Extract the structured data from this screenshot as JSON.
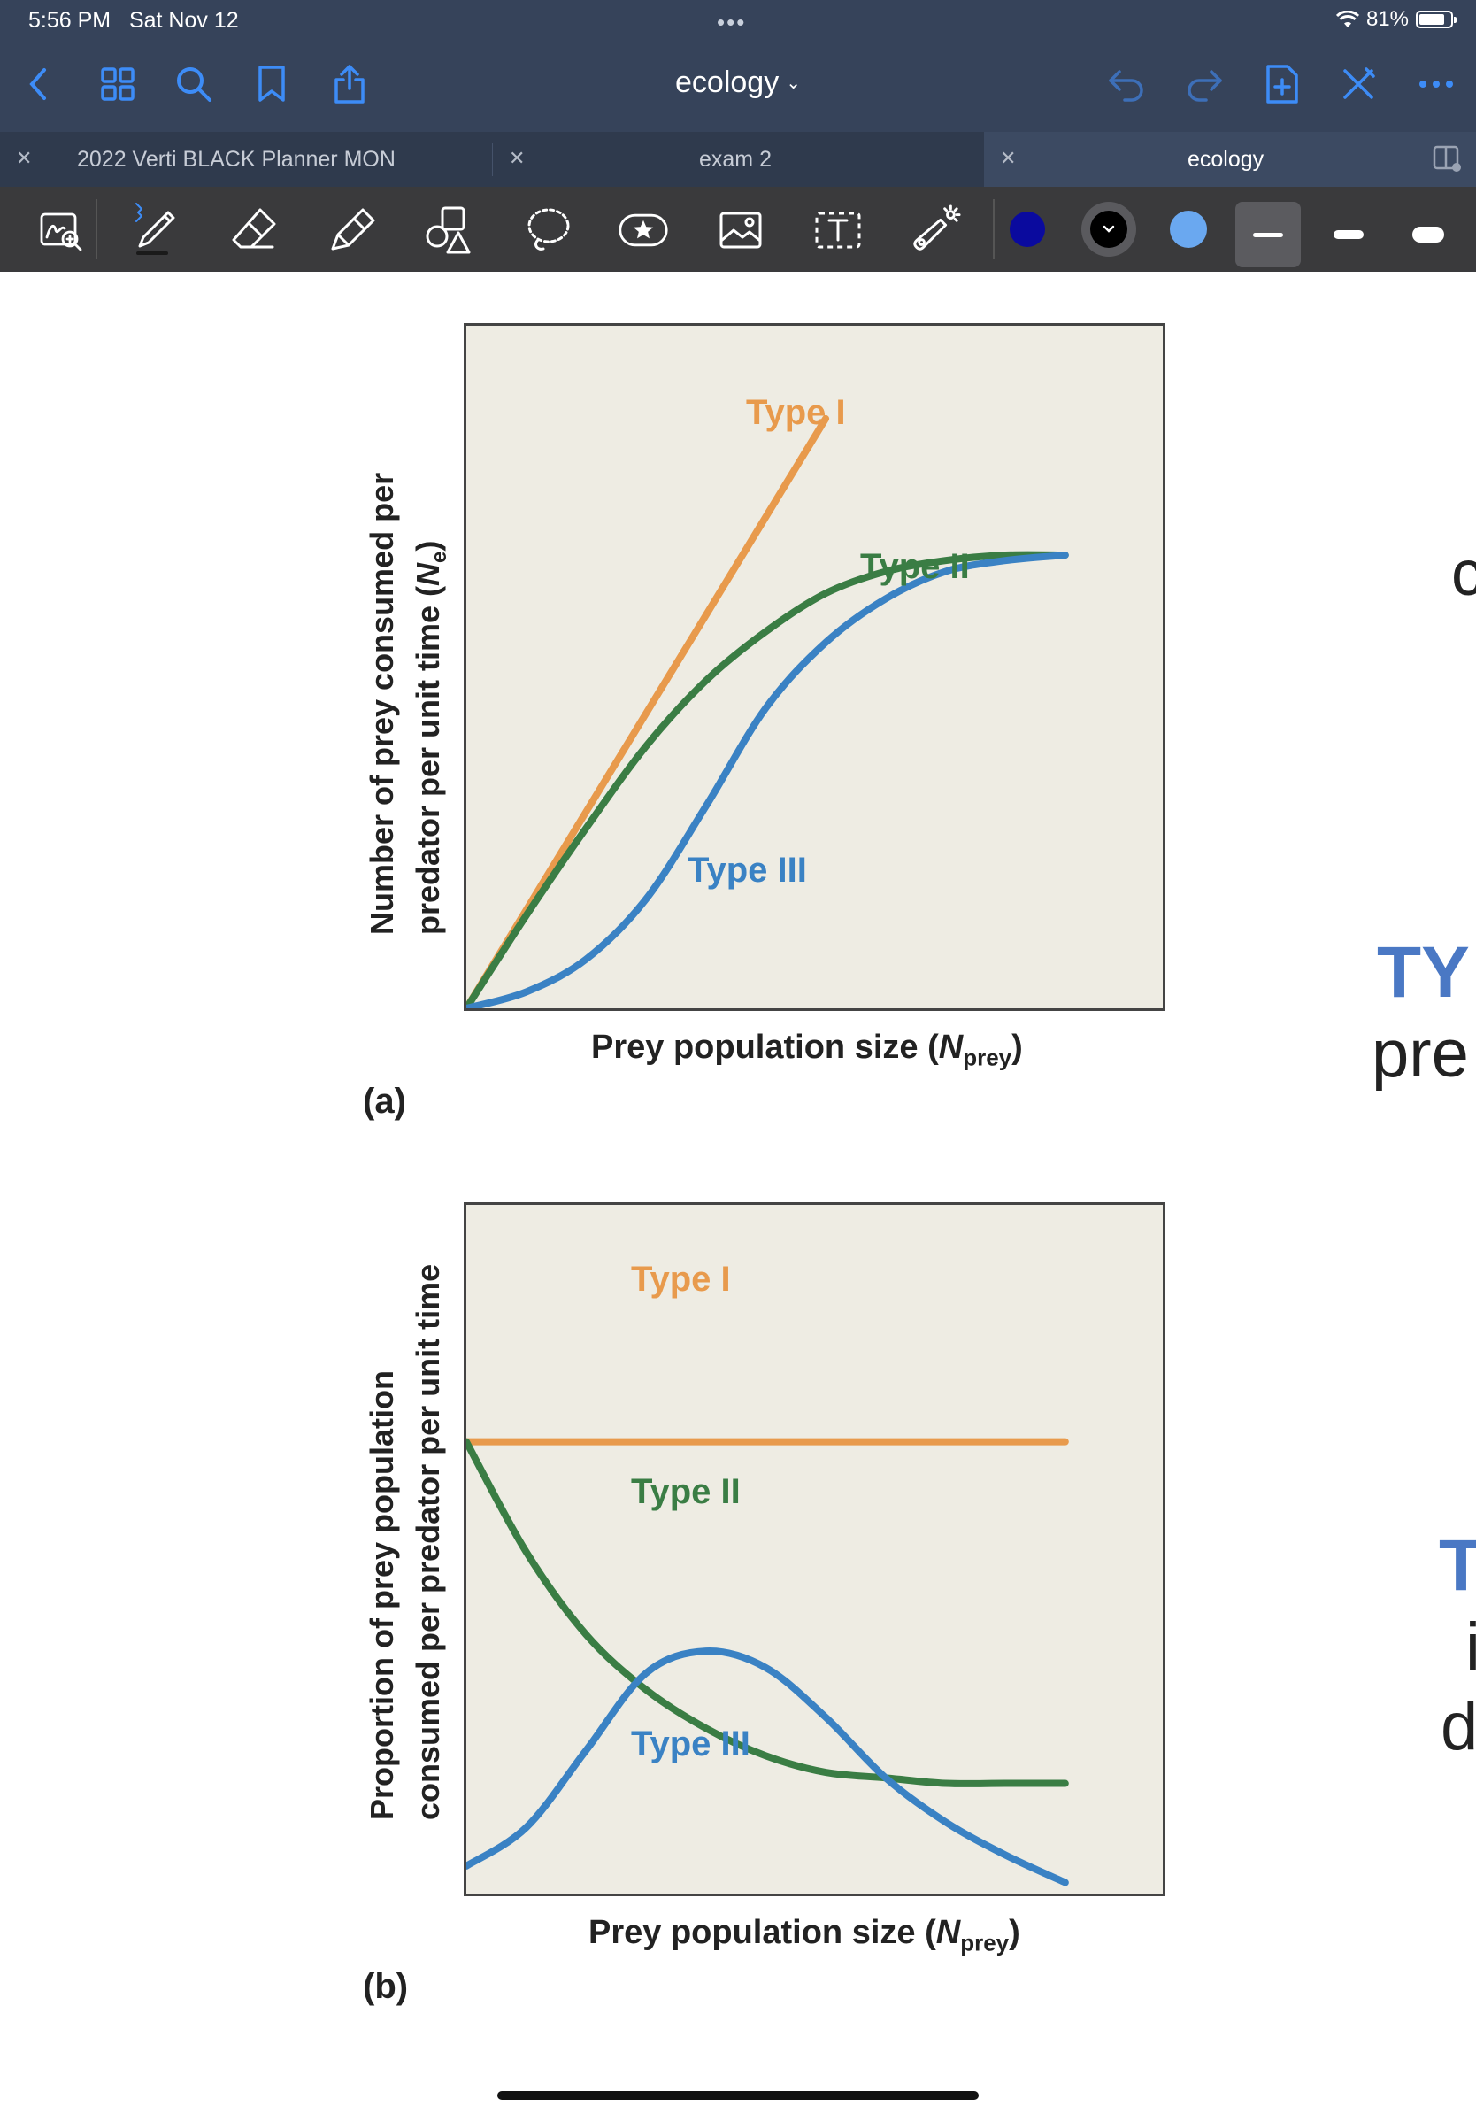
{
  "status": {
    "time": "5:56 PM",
    "date": "Sat Nov 12",
    "battery": "81%",
    "battery_level": 0.81
  },
  "nav": {
    "title": "ecology"
  },
  "tabs": [
    {
      "label": "2022 Verti BLACK Planner MON",
      "active": false
    },
    {
      "label": "exam 2",
      "active": false
    },
    {
      "label": "ecology",
      "active": true
    }
  ],
  "toolbar": {
    "tools": [
      "zoom-lasso",
      "pen",
      "eraser",
      "highlighter",
      "shapes",
      "lasso",
      "sticker",
      "image",
      "text",
      "laser-pointer"
    ],
    "colors": [
      "#0a0a9e",
      "#000000",
      "#6aa8f0"
    ],
    "selected_color": "#000000"
  },
  "chart_data": [
    {
      "type": "line",
      "panel": "(a)",
      "xlabel": "Prey population size (Nprey)",
      "xlabel_parts": [
        "Prey population size (",
        "N",
        "prey",
        ")"
      ],
      "ylabel_lines": [
        "Number of prey consumed per",
        "predator per unit time (Ne)"
      ],
      "ylabel_line2_parts": [
        "predator per unit time (",
        "N",
        "e",
        ")"
      ],
      "x": [
        0,
        0.1,
        0.2,
        0.3,
        0.4,
        0.5,
        0.6,
        0.7,
        0.8,
        0.9,
        1.0
      ],
      "series": [
        {
          "name": "Type I",
          "color": "#e89a4c",
          "values": [
            0,
            0.18,
            0.36,
            0.54,
            0.72,
            0.9,
            1.08,
            null,
            null,
            null,
            null
          ]
        },
        {
          "name": "Type II",
          "color": "#3a7d44",
          "values": [
            0,
            0.17,
            0.33,
            0.48,
            0.6,
            0.69,
            0.76,
            0.8,
            0.82,
            0.83,
            0.83
          ]
        },
        {
          "name": "Type III",
          "color": "#3a82c4",
          "values": [
            0,
            0.03,
            0.09,
            0.2,
            0.37,
            0.55,
            0.67,
            0.75,
            0.8,
            0.82,
            0.83
          ]
        }
      ]
    },
    {
      "type": "line",
      "panel": "(b)",
      "xlabel": "Prey population size (Nprey)",
      "xlabel_parts": [
        "Prey population size (",
        "N",
        "prey",
        ")"
      ],
      "ylabel_lines": [
        "Proportion of prey population",
        "consumed per predator per unit time"
      ],
      "x": [
        0,
        0.1,
        0.2,
        0.3,
        0.4,
        0.5,
        0.6,
        0.7,
        0.8,
        0.9,
        1.0
      ],
      "series": [
        {
          "name": "Type I",
          "color": "#e89a4c",
          "values": [
            0.82,
            0.82,
            0.82,
            0.82,
            0.82,
            0.82,
            0.82,
            0.82,
            0.82,
            0.82,
            0.82
          ]
        },
        {
          "name": "Type II",
          "color": "#3a7d44",
          "values": [
            0.82,
            0.62,
            0.47,
            0.37,
            0.3,
            0.25,
            0.22,
            0.21,
            0.2,
            0.2,
            0.2
          ]
        },
        {
          "name": "Type III",
          "color": "#3a82c4",
          "values": [
            0.05,
            0.12,
            0.26,
            0.4,
            0.44,
            0.41,
            0.32,
            0.21,
            0.13,
            0.07,
            0.02
          ]
        }
      ]
    }
  ],
  "side_notes": [
    "c",
    "TY",
    "pre",
    "T",
    "i",
    "d"
  ]
}
